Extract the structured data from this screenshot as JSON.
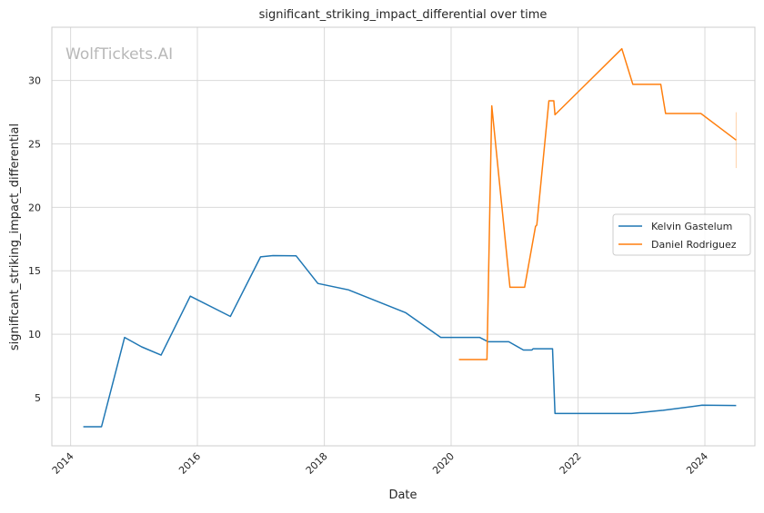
{
  "chart_data": {
    "type": "line",
    "title": "significant_striking_impact_differential over time",
    "xlabel": "Date",
    "ylabel": "significant_striking_impact_differential",
    "watermark": "WolfTickets.AI",
    "xlim": [
      "2013-09-15",
      "2024-10-15"
    ],
    "ylim": [
      1.2,
      34.2
    ],
    "x_ticks": [
      {
        "date": "2014-01-01",
        "label": "2014"
      },
      {
        "date": "2016-01-01",
        "label": "2016"
      },
      {
        "date": "2018-01-01",
        "label": "2018"
      },
      {
        "date": "2020-01-01",
        "label": "2020"
      },
      {
        "date": "2022-01-01",
        "label": "2022"
      },
      {
        "date": "2024-01-01",
        "label": "2024"
      }
    ],
    "y_ticks": [
      {
        "value": 5,
        "label": "5"
      },
      {
        "value": 10,
        "label": "10"
      },
      {
        "value": 15,
        "label": "15"
      },
      {
        "value": 20,
        "label": "20"
      },
      {
        "value": 25,
        "label": "25"
      },
      {
        "value": 30,
        "label": "30"
      }
    ],
    "grid": true,
    "legend_position": "center-right",
    "series": [
      {
        "name": "Kelvin Gastelum",
        "color": "#1f77b4",
        "points": [
          {
            "x": "2014-03-15",
            "y": 2.7
          },
          {
            "x": "2014-06-28",
            "y": 2.7
          },
          {
            "x": "2014-11-08",
            "y": 9.75
          },
          {
            "x": "2015-02-14",
            "y": 9.0
          },
          {
            "x": "2015-06-06",
            "y": 8.35
          },
          {
            "x": "2015-11-21",
            "y": 13.0
          },
          {
            "x": "2016-07-09",
            "y": 11.4
          },
          {
            "x": "2016-12-30",
            "y": 16.1
          },
          {
            "x": "2017-03-11",
            "y": 16.2
          },
          {
            "x": "2017-07-22",
            "y": 16.18
          },
          {
            "x": "2017-11-25",
            "y": 14.0
          },
          {
            "x": "2018-05-19",
            "y": 13.5
          },
          {
            "x": "2019-04-13",
            "y": 11.7
          },
          {
            "x": "2019-11-02",
            "y": 9.75
          },
          {
            "x": "2020-06-13",
            "y": 9.75
          },
          {
            "x": "2020-08-01",
            "y": 9.4
          },
          {
            "x": "2020-11-28",
            "y": 9.4
          },
          {
            "x": "2021-02-20",
            "y": 8.75
          },
          {
            "x": "2021-04-10",
            "y": 8.75
          },
          {
            "x": "2021-04-17",
            "y": 8.85
          },
          {
            "x": "2021-08-07",
            "y": 8.85
          },
          {
            "x": "2021-08-21",
            "y": 3.75
          },
          {
            "x": "2022-11-05",
            "y": 3.75
          },
          {
            "x": "2023-03-25",
            "y": 3.95
          },
          {
            "x": "2023-05-06",
            "y": 4.0
          },
          {
            "x": "2023-12-16",
            "y": 4.4
          },
          {
            "x": "2024-06-29",
            "y": 4.38
          }
        ]
      },
      {
        "name": "Daniel Rodriguez",
        "color": "#ff7f0e",
        "points": [
          {
            "x": "2020-02-15",
            "y": 8.0
          },
          {
            "x": "2020-07-25",
            "y": 8.0
          },
          {
            "x": "2020-08-22",
            "y": 28.0
          },
          {
            "x": "2020-12-05",
            "y": 13.7
          },
          {
            "x": "2021-02-27",
            "y": 13.7
          },
          {
            "x": "2021-05-01",
            "y": 18.5
          },
          {
            "x": "2021-05-08",
            "y": 18.6
          },
          {
            "x": "2021-07-17",
            "y": 28.4
          },
          {
            "x": "2021-08-14",
            "y": 28.4
          },
          {
            "x": "2021-08-21",
            "y": 27.3
          },
          {
            "x": "2022-09-10",
            "y": 32.5
          },
          {
            "x": "2022-11-12",
            "y": 29.7
          },
          {
            "x": "2023-04-22",
            "y": 29.7
          },
          {
            "x": "2023-05-20",
            "y": 27.4
          },
          {
            "x": "2023-12-09",
            "y": 27.4
          },
          {
            "x": "2024-06-29",
            "y": 25.3
          }
        ],
        "band": {
          "x": "2024-06-29",
          "low": 23.1,
          "high": 27.5
        }
      }
    ]
  }
}
